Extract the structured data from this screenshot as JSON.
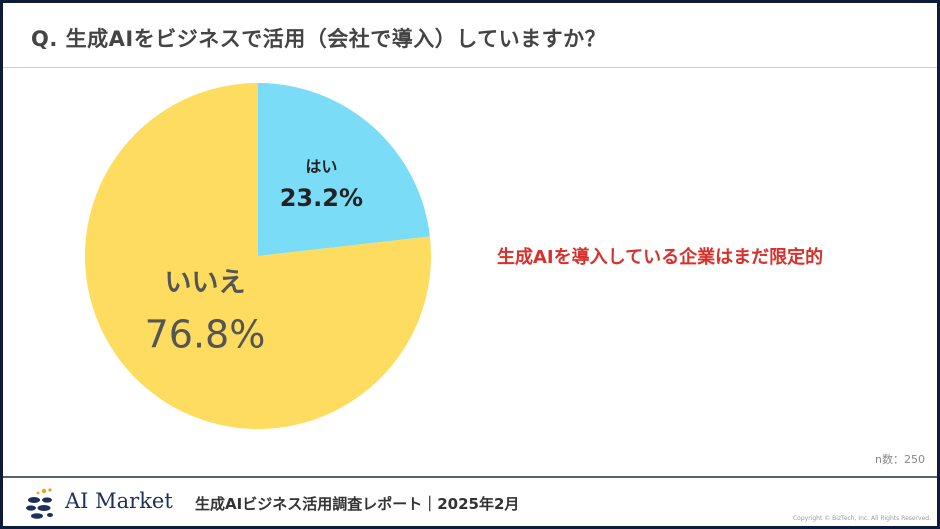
{
  "question": "Q. 生成AIをビジネスで活用（会社で導入）していますか？",
  "conclusion": "生成AIを導入している企業はまだ限定的",
  "sample_note": "n数：250",
  "footer": {
    "brand": "AI Market",
    "report_title": "生成AIビジネス活用調査レポート｜2025年2月",
    "copyright": "Copyright © BizTech, Inc. All Rights Reserved."
  },
  "colors": {
    "yes": "#7adcf7",
    "no": "#fddc5f"
  },
  "chart_data": {
    "type": "pie",
    "title": "",
    "slices": [
      {
        "label": "はい",
        "value": 23.2,
        "display": "23.2%",
        "color": "#7adcf7"
      },
      {
        "label": "いいえ",
        "value": 76.8,
        "display": "76.8%",
        "color": "#fddc5f"
      }
    ]
  }
}
